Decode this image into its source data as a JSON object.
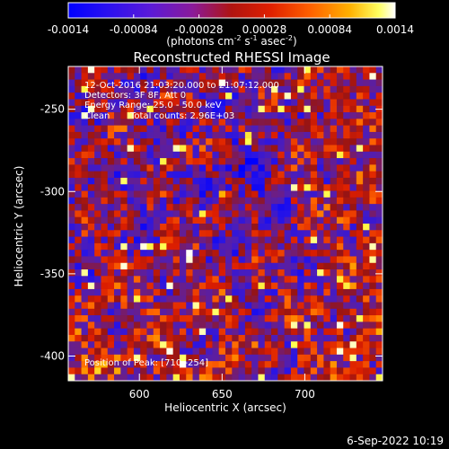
{
  "chart_data": {
    "type": "heatmap",
    "title": "Reconstructed RHESSI Image",
    "xlabel": "Heliocentric X (arcsec)",
    "ylabel": "Heliocentric Y (arcsec)",
    "xlim": [
      557,
      747
    ],
    "ylim": [
      -415,
      -224
    ],
    "xticks": [
      600,
      650,
      700
    ],
    "yticks": [
      -250,
      -300,
      -350,
      -400
    ],
    "grid": false,
    "colorbar": {
      "range": [
        -0.0014,
        0.0014
      ],
      "tick_values": [
        -0.0014,
        -0.00084,
        -0.00028,
        0.00028,
        0.00084,
        0.0014
      ],
      "ticks": [
        "-0.0014",
        "-0.00084",
        "-0.00028",
        "0.00028",
        "0.00084",
        "0.0014"
      ],
      "unit_main": "(photons cm",
      "unit_sup1": "-2",
      "unit_mid": " s",
      "unit_sup2": "-1",
      "unit_mid2": " asec",
      "unit_sup3": "-2",
      "unit_end": ")"
    },
    "annotations": {
      "line1": "12-Oct-2016 21:03:20.000 to 21:07:12.000",
      "line2": "Detectors: 3F 8F, Att 0",
      "line3": "Energy Range: 25.0 - 50.0 keV",
      "line4a": "Clean",
      "line4b": "Total counts: 2.96E+03",
      "peak": "Position of Peak:   [710,-254]"
    },
    "grid_size": [
      48,
      48
    ],
    "peak_position": [
      710,
      -254
    ]
  },
  "footer": {
    "timestamp": "6-Sep-2022 10:19"
  }
}
